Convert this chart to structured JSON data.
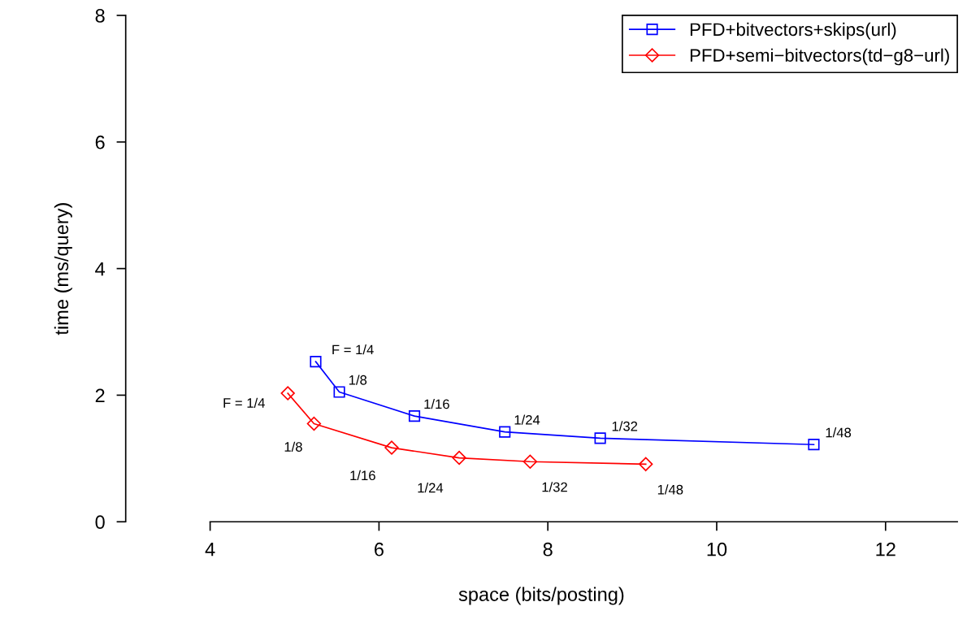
{
  "chart_data": {
    "type": "line",
    "xlabel": "space (bits/posting)",
    "ylabel": "time (ms/query)",
    "xlim": [
      3,
      12.85
    ],
    "ylim": [
      0,
      8
    ],
    "xticks": [
      4,
      6,
      8,
      10,
      12
    ],
    "yticks": [
      0,
      2,
      4,
      6,
      8
    ],
    "grid": false,
    "legend": "top right",
    "line_style": "solid",
    "series": [
      {
        "name": "PFD+bitvectors+skips(url)",
        "color": "#0000ff",
        "marker": "square",
        "x": [
          5.25,
          5.53,
          6.42,
          7.49,
          8.62,
          11.15
        ],
        "values": [
          2.53,
          2.05,
          1.67,
          1.42,
          1.32,
          1.22
        ]
      },
      {
        "name": "PFD+semi−bitvectors(td−g8−url)",
        "color": "#ff0000",
        "marker": "diamond",
        "x": [
          4.92,
          5.23,
          6.15,
          6.95,
          7.79,
          9.16
        ],
        "values": [
          2.03,
          1.55,
          1.17,
          1.01,
          0.95,
          0.91
        ]
      }
    ],
    "annotations": [
      {
        "text": "F = 1/4",
        "x": 5.25,
        "y": 2.53
      },
      {
        "text": "1/8",
        "x": 5.53,
        "y": 2.05
      },
      {
        "text": "1/16",
        "x": 6.42,
        "y": 1.67
      },
      {
        "text": "1/24",
        "x": 7.49,
        "y": 1.42
      },
      {
        "text": "1/32",
        "x": 8.62,
        "y": 1.32
      },
      {
        "text": "1/48",
        "x": 11.15,
        "y": 1.22
      },
      {
        "text": "F = 1/4",
        "x": 4.92,
        "y": 2.03
      },
      {
        "text": "1/8",
        "x": 5.23,
        "y": 1.55
      },
      {
        "text": "1/16",
        "x": 6.15,
        "y": 1.17
      },
      {
        "text": "1/24",
        "x": 6.95,
        "y": 1.01
      },
      {
        "text": "1/32",
        "x": 7.79,
        "y": 0.95
      },
      {
        "text": "1/48",
        "x": 9.16,
        "y": 0.91
      }
    ]
  }
}
